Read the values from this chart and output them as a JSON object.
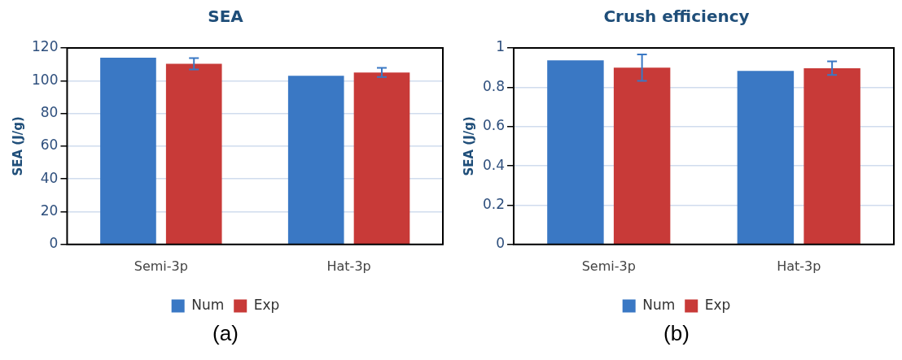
{
  "chart_data": [
    {
      "type": "bar",
      "title": "SEA",
      "ylabel": "SEA (J/g)",
      "categories": [
        "Semi-3p",
        "Hat-3p"
      ],
      "series": [
        {
          "name": "Num",
          "color": "#3a78c4",
          "values": [
            114,
            103
          ]
        },
        {
          "name": "Exp",
          "color": "#c83a38",
          "values": [
            110.3,
            105
          ],
          "errors": [
            3.5,
            2.8
          ]
        }
      ],
      "ylim": [
        0,
        120
      ],
      "yticks": [
        0,
        20,
        40,
        60,
        80,
        100,
        120
      ],
      "grid": "y",
      "legend": "bottom",
      "annotations": [
        "(a)"
      ]
    },
    {
      "type": "bar",
      "title": "Crush efficiency",
      "ylabel": "SEA (J/g)",
      "categories": [
        "Semi-3p",
        "Hat-3p"
      ],
      "series": [
        {
          "name": "Num",
          "color": "#3a78c4",
          "values": [
            0.937,
            0.883
          ]
        },
        {
          "name": "Exp",
          "color": "#c83a38",
          "values": [
            0.9,
            0.897
          ],
          "errors": [
            0.067,
            0.035
          ]
        }
      ],
      "ylim": [
        0,
        1
      ],
      "yticks": [
        0,
        0.2,
        0.4,
        0.6,
        0.8,
        1
      ],
      "grid": "y",
      "legend": "bottom",
      "annotations": [
        "(b)"
      ]
    }
  ]
}
